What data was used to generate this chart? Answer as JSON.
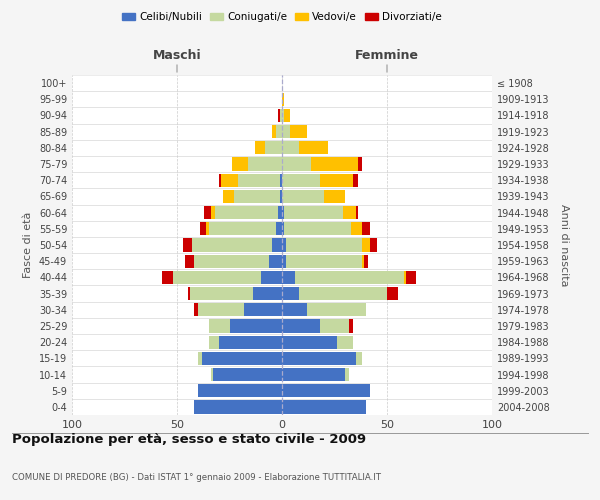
{
  "age_groups": [
    "0-4",
    "5-9",
    "10-14",
    "15-19",
    "20-24",
    "25-29",
    "30-34",
    "35-39",
    "40-44",
    "45-49",
    "50-54",
    "55-59",
    "60-64",
    "65-69",
    "70-74",
    "75-79",
    "80-84",
    "85-89",
    "90-94",
    "95-99",
    "100+"
  ],
  "birth_years": [
    "2004-2008",
    "1999-2003",
    "1994-1998",
    "1989-1993",
    "1984-1988",
    "1979-1983",
    "1974-1978",
    "1969-1973",
    "1964-1968",
    "1959-1963",
    "1954-1958",
    "1949-1953",
    "1944-1948",
    "1939-1943",
    "1934-1938",
    "1929-1933",
    "1924-1928",
    "1919-1923",
    "1914-1918",
    "1909-1913",
    "≤ 1908"
  ],
  "males": {
    "celibe": [
      42,
      40,
      33,
      38,
      30,
      25,
      18,
      14,
      10,
      6,
      5,
      3,
      2,
      1,
      1,
      0,
      0,
      0,
      0,
      0,
      0
    ],
    "coniugato": [
      0,
      0,
      1,
      2,
      5,
      10,
      22,
      30,
      42,
      36,
      38,
      32,
      30,
      22,
      20,
      16,
      8,
      3,
      1,
      0,
      0
    ],
    "vedovo": [
      0,
      0,
      0,
      0,
      0,
      0,
      0,
      0,
      0,
      0,
      0,
      1,
      2,
      5,
      8,
      8,
      5,
      2,
      0,
      0,
      0
    ],
    "divorziato": [
      0,
      0,
      0,
      0,
      0,
      0,
      2,
      1,
      5,
      4,
      4,
      3,
      3,
      0,
      1,
      0,
      0,
      0,
      1,
      0,
      0
    ]
  },
  "females": {
    "nubile": [
      40,
      42,
      30,
      35,
      26,
      18,
      12,
      8,
      6,
      2,
      2,
      1,
      1,
      0,
      0,
      0,
      0,
      0,
      0,
      0,
      0
    ],
    "coniugata": [
      0,
      0,
      2,
      3,
      8,
      14,
      28,
      42,
      52,
      36,
      36,
      32,
      28,
      20,
      18,
      14,
      8,
      4,
      1,
      0,
      0
    ],
    "vedova": [
      0,
      0,
      0,
      0,
      0,
      0,
      0,
      0,
      1,
      1,
      4,
      5,
      6,
      10,
      16,
      22,
      14,
      8,
      3,
      1,
      0
    ],
    "divorziata": [
      0,
      0,
      0,
      0,
      0,
      2,
      0,
      5,
      5,
      2,
      3,
      4,
      1,
      0,
      2,
      2,
      0,
      0,
      0,
      0,
      0
    ]
  },
  "colors": {
    "celibe": "#4472c4",
    "coniugato": "#c5d9a0",
    "vedovo": "#ffc000",
    "divorziato": "#cc0000"
  },
  "xlim": [
    -100,
    100
  ],
  "xticks": [
    -100,
    -50,
    0,
    50,
    100
  ],
  "xticklabels": [
    "100",
    "50",
    "0",
    "50",
    "100"
  ],
  "title": "Popolazione per età, sesso e stato civile - 2009",
  "subtitle": "COMUNE DI PREDORE (BG) - Dati ISTAT 1° gennaio 2009 - Elaborazione TUTTITALIA.IT",
  "ylabel_left": "Fasce di età",
  "ylabel_right": "Anni di nascita",
  "maschi_label": "Maschi",
  "femmine_label": "Femmine",
  "legend_labels": [
    "Celibi/Nubili",
    "Coniugati/e",
    "Vedovi/e",
    "Divorziati/e"
  ],
  "bg_color": "#f5f5f5",
  "plot_bg": "#ffffff"
}
